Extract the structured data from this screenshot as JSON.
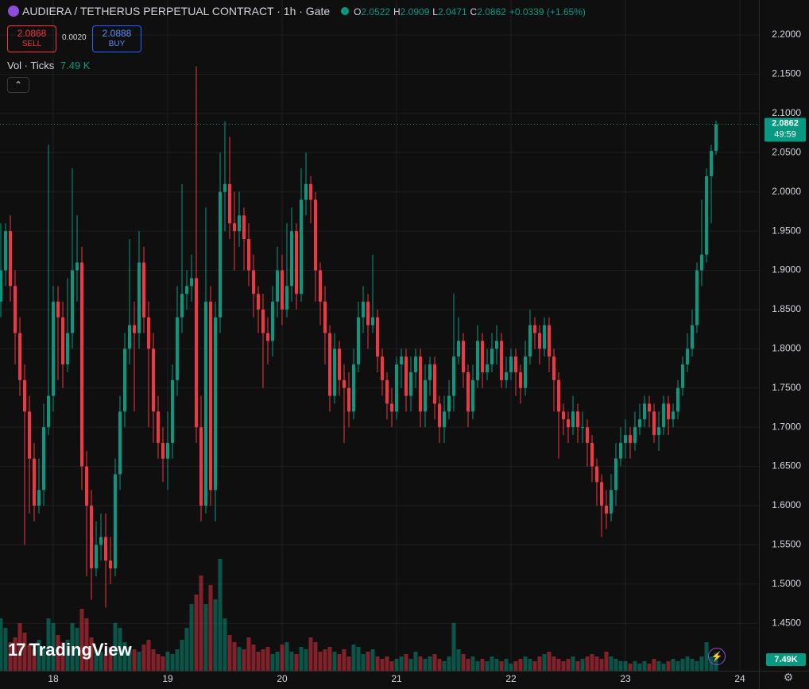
{
  "header": {
    "symbol_title": "AUDIERA / TETHERUS PERPETUAL CONTRACT · 1h · Gate",
    "o_label": "O",
    "h_label": "H",
    "l_label": "L",
    "c_label": "C",
    "change": "+0.0339 (+1.65%)",
    "sell_price": "2.0868",
    "sell_label": "SELL",
    "spread": "0.0020",
    "buy_price": "2.0888",
    "buy_label": "BUY",
    "volume_indicator": "Vol · Ticks",
    "volume_indicator_value": "7.49 K",
    "logo": "TradingView",
    "countdown": "49:59"
  },
  "chart_data": {
    "type": "candlestick",
    "open": [
      1.86,
      1.9,
      1.95,
      1.88,
      1.82,
      1.76,
      1.72,
      1.66,
      1.6,
      1.62,
      1.7,
      1.74,
      1.86,
      1.84,
      1.78,
      1.82,
      1.9,
      1.91,
      1.65,
      1.6,
      1.52,
      1.55,
      1.56,
      1.53,
      1.52,
      1.64,
      1.72,
      1.8,
      1.83,
      1.82,
      1.91,
      1.84,
      1.8,
      1.72,
      1.68,
      1.66,
      1.68,
      1.76,
      1.84,
      1.87,
      1.88,
      1.89,
      1.7,
      1.6,
      1.86,
      1.62,
      1.84,
      2.0,
      2.01,
      1.96,
      1.95,
      1.97,
      1.94,
      1.9,
      1.87,
      1.85,
      1.82,
      1.81,
      1.86,
      1.9,
      1.85,
      1.88,
      1.95,
      1.87,
      1.99,
      2.01,
      1.99,
      1.9,
      1.86,
      1.82,
      1.74,
      1.8,
      1.76,
      1.75,
      1.72,
      1.78,
      1.84,
      1.86,
      1.83,
      1.84,
      1.79,
      1.76,
      1.73,
      1.72,
      1.78,
      1.79,
      1.74,
      1.77,
      1.79,
      1.72,
      1.76,
      1.78,
      1.73,
      1.7,
      1.72,
      1.74,
      1.79,
      1.81,
      1.77,
      1.72,
      1.76,
      1.81,
      1.77,
      1.78,
      1.8,
      1.81,
      1.76,
      1.77,
      1.79,
      1.77,
      1.75,
      1.79,
      1.83,
      1.82,
      1.8,
      1.83,
      1.79,
      1.76,
      1.72,
      1.71,
      1.7,
      1.72,
      1.7,
      1.7,
      1.68,
      1.65,
      1.63,
      1.6,
      1.59,
      1.62,
      1.66,
      1.68,
      1.69,
      1.68,
      1.7,
      1.71,
      1.73,
      1.72,
      1.69,
      1.7,
      1.73,
      1.71,
      1.72,
      1.75,
      1.78,
      1.8,
      1.83,
      1.9,
      1.92,
      2.02,
      2.0522
    ],
    "high": [
      1.96,
      1.96,
      1.97,
      1.9,
      1.84,
      1.78,
      1.74,
      1.68,
      1.66,
      1.73,
      2.06,
      1.88,
      1.88,
      1.86,
      1.89,
      2.03,
      1.97,
      1.93,
      1.67,
      1.62,
      1.58,
      1.59,
      1.59,
      1.56,
      1.66,
      1.74,
      1.82,
      1.94,
      1.86,
      1.95,
      1.93,
      1.86,
      1.82,
      1.74,
      1.7,
      1.72,
      1.78,
      1.88,
      2.01,
      1.9,
      1.92,
      2.16,
      1.74,
      1.98,
      1.88,
      1.86,
      2.05,
      2.09,
      2.07,
      2.0,
      2.0,
      1.98,
      1.96,
      1.92,
      1.88,
      1.87,
      1.84,
      1.88,
      1.93,
      1.92,
      1.96,
      1.98,
      1.96,
      2.03,
      2.05,
      2.02,
      2.0,
      1.91,
      1.88,
      1.83,
      1.82,
      1.81,
      1.78,
      1.77,
      1.8,
      1.86,
      1.88,
      1.87,
      1.92,
      1.85,
      1.8,
      1.77,
      1.75,
      1.79,
      1.8,
      1.8,
      1.79,
      1.8,
      1.8,
      1.78,
      1.79,
      1.79,
      1.74,
      1.74,
      1.76,
      1.87,
      1.84,
      1.82,
      1.78,
      1.78,
      1.83,
      1.82,
      1.8,
      1.82,
      1.83,
      1.82,
      1.79,
      1.8,
      1.8,
      1.78,
      1.81,
      1.85,
      1.84,
      1.83,
      1.84,
      1.84,
      1.8,
      1.77,
      1.73,
      1.72,
      1.74,
      1.73,
      1.72,
      1.71,
      1.69,
      1.66,
      1.64,
      1.62,
      1.64,
      1.68,
      1.7,
      1.71,
      1.7,
      1.72,
      1.73,
      1.74,
      1.74,
      1.73,
      1.72,
      1.74,
      1.74,
      1.73,
      1.76,
      1.79,
      1.82,
      1.85,
      1.91,
      1.99,
      2.03,
      2.06,
      2.0909
    ],
    "low": [
      1.84,
      1.88,
      1.86,
      1.78,
      1.74,
      1.55,
      1.59,
      1.58,
      1.59,
      1.6,
      1.69,
      1.72,
      1.76,
      1.75,
      1.77,
      1.8,
      1.86,
      1.62,
      1.51,
      1.48,
      1.51,
      1.53,
      1.47,
      1.5,
      1.51,
      1.62,
      1.7,
      1.78,
      1.72,
      1.8,
      1.82,
      1.7,
      1.68,
      1.66,
      1.63,
      1.62,
      1.66,
      1.74,
      1.82,
      1.85,
      1.86,
      1.68,
      1.58,
      1.59,
      1.6,
      1.58,
      1.82,
      1.95,
      1.94,
      1.9,
      1.93,
      1.9,
      1.88,
      1.84,
      1.82,
      1.75,
      1.78,
      1.79,
      1.84,
      1.83,
      1.84,
      1.86,
      1.85,
      1.86,
      1.97,
      1.96,
      1.86,
      1.83,
      1.78,
      1.72,
      1.73,
      1.74,
      1.68,
      1.7,
      1.71,
      1.77,
      1.82,
      1.8,
      1.82,
      1.77,
      1.74,
      1.71,
      1.7,
      1.71,
      1.75,
      1.72,
      1.72,
      1.75,
      1.7,
      1.7,
      1.74,
      1.71,
      1.68,
      1.68,
      1.71,
      1.72,
      1.78,
      1.75,
      1.7,
      1.71,
      1.75,
      1.75,
      1.76,
      1.77,
      1.78,
      1.75,
      1.75,
      1.76,
      1.74,
      1.73,
      1.74,
      1.78,
      1.8,
      1.78,
      1.79,
      1.77,
      1.72,
      1.66,
      1.69,
      1.68,
      1.69,
      1.68,
      1.68,
      1.65,
      1.63,
      1.6,
      1.56,
      1.57,
      1.58,
      1.6,
      1.65,
      1.66,
      1.66,
      1.67,
      1.69,
      1.7,
      1.7,
      1.68,
      1.67,
      1.69,
      1.69,
      1.7,
      1.71,
      1.74,
      1.77,
      1.79,
      1.82,
      1.88,
      1.91,
      1.96,
      2.0471
    ],
    "close": [
      1.9,
      1.95,
      1.88,
      1.82,
      1.76,
      1.72,
      1.66,
      1.6,
      1.62,
      1.7,
      1.74,
      1.86,
      1.84,
      1.78,
      1.82,
      1.9,
      1.91,
      1.65,
      1.6,
      1.52,
      1.55,
      1.56,
      1.53,
      1.52,
      1.64,
      1.72,
      1.8,
      1.83,
      1.82,
      1.91,
      1.84,
      1.8,
      1.72,
      1.68,
      1.66,
      1.68,
      1.76,
      1.84,
      1.87,
      1.88,
      1.89,
      1.7,
      1.6,
      1.86,
      1.62,
      1.84,
      2.0,
      2.01,
      1.96,
      1.95,
      1.97,
      1.94,
      1.9,
      1.87,
      1.85,
      1.82,
      1.81,
      1.86,
      1.9,
      1.85,
      1.88,
      1.95,
      1.87,
      1.99,
      2.01,
      1.99,
      1.9,
      1.86,
      1.82,
      1.74,
      1.8,
      1.76,
      1.75,
      1.72,
      1.78,
      1.84,
      1.86,
      1.83,
      1.84,
      1.79,
      1.76,
      1.73,
      1.72,
      1.78,
      1.79,
      1.74,
      1.77,
      1.79,
      1.72,
      1.76,
      1.78,
      1.73,
      1.7,
      1.72,
      1.74,
      1.79,
      1.81,
      1.77,
      1.72,
      1.76,
      1.81,
      1.77,
      1.78,
      1.8,
      1.81,
      1.76,
      1.77,
      1.79,
      1.77,
      1.75,
      1.79,
      1.83,
      1.82,
      1.8,
      1.83,
      1.79,
      1.76,
      1.72,
      1.71,
      1.7,
      1.72,
      1.7,
      1.7,
      1.68,
      1.65,
      1.63,
      1.6,
      1.59,
      1.62,
      1.66,
      1.68,
      1.69,
      1.68,
      1.7,
      1.71,
      1.73,
      1.72,
      1.69,
      1.7,
      1.73,
      1.71,
      1.72,
      1.75,
      1.78,
      1.8,
      1.83,
      1.9,
      1.92,
      2.02,
      2.0522,
      2.0862
    ],
    "volume": [
      22000,
      18000,
      12000,
      14000,
      20000,
      16000,
      11000,
      9000,
      13000,
      10000,
      22000,
      20000,
      15000,
      12000,
      13000,
      20000,
      18000,
      26000,
      22000,
      14000,
      9000,
      8000,
      7000,
      10000,
      20000,
      18000,
      12000,
      10000,
      9000,
      8000,
      11000,
      13000,
      9000,
      7000,
      6000,
      8000,
      7000,
      9000,
      13000,
      18000,
      28000,
      32000,
      40000,
      28000,
      36000,
      30000,
      47000,
      22000,
      15000,
      12000,
      10000,
      9000,
      14000,
      11000,
      8000,
      9000,
      10000,
      7000,
      8000,
      11000,
      12000,
      8000,
      7000,
      10000,
      9000,
      14000,
      12000,
      8000,
      9000,
      10000,
      8000,
      7000,
      9000,
      6000,
      11000,
      10000,
      7000,
      8000,
      9000,
      6000,
      5000,
      6000,
      4000,
      5000,
      6000,
      7000,
      5000,
      8000,
      6000,
      5000,
      6000,
      7000,
      5000,
      4000,
      6000,
      20000,
      9000,
      7000,
      5000,
      6000,
      4000,
      5000,
      4000,
      6000,
      5000,
      4000,
      5000,
      3000,
      4000,
      5000,
      6000,
      5000,
      4000,
      6000,
      7000,
      8000,
      6000,
      5000,
      4000,
      5000,
      6000,
      4000,
      5000,
      6000,
      7000,
      6000,
      5000,
      8000,
      6000,
      5000,
      4000,
      4000,
      3000,
      4000,
      3000,
      4000,
      3000,
      5000,
      4000,
      3000,
      4000,
      5000,
      4000,
      5000,
      6000,
      5000,
      4000,
      6000,
      12000,
      6000,
      7490
    ],
    "last_volume_label": "7.49K",
    "up_color": "#089981",
    "down_color": "#f23645",
    "ylim": [
      1.3895,
      2.2446
    ],
    "yticks": [
      {
        "value": 2.2,
        "label": "2.2000"
      },
      {
        "value": 2.15,
        "label": "2.1500"
      },
      {
        "value": 2.1,
        "label": "2.1000"
      },
      {
        "value": 2.05,
        "label": "2.0500"
      },
      {
        "value": 2.0,
        "label": "2.0000"
      },
      {
        "value": 1.95,
        "label": "1.9500"
      },
      {
        "value": 1.9,
        "label": "1.9000"
      },
      {
        "value": 1.85,
        "label": "1.8500"
      },
      {
        "value": 1.8,
        "label": "1.8000"
      },
      {
        "value": 1.75,
        "label": "1.7500"
      },
      {
        "value": 1.7,
        "label": "1.7000"
      },
      {
        "value": 1.65,
        "label": "1.6500"
      },
      {
        "value": 1.6,
        "label": "1.6000"
      },
      {
        "value": 1.55,
        "label": "1.5500"
      },
      {
        "value": 1.5,
        "label": "1.5000"
      },
      {
        "value": 1.45,
        "label": "1.4500"
      }
    ],
    "xlim": [
      -0.1667,
      159
    ],
    "xticks": [
      {
        "value": 11,
        "label": "18"
      },
      {
        "value": 35,
        "label": "19"
      },
      {
        "value": 59,
        "label": "20"
      },
      {
        "value": 83,
        "label": "21"
      },
      {
        "value": 107,
        "label": "22"
      },
      {
        "value": 131,
        "label": "23"
      },
      {
        "value": 155,
        "label": "24"
      }
    ],
    "volume_lim": [
      0,
      60000
    ],
    "grid": true
  }
}
